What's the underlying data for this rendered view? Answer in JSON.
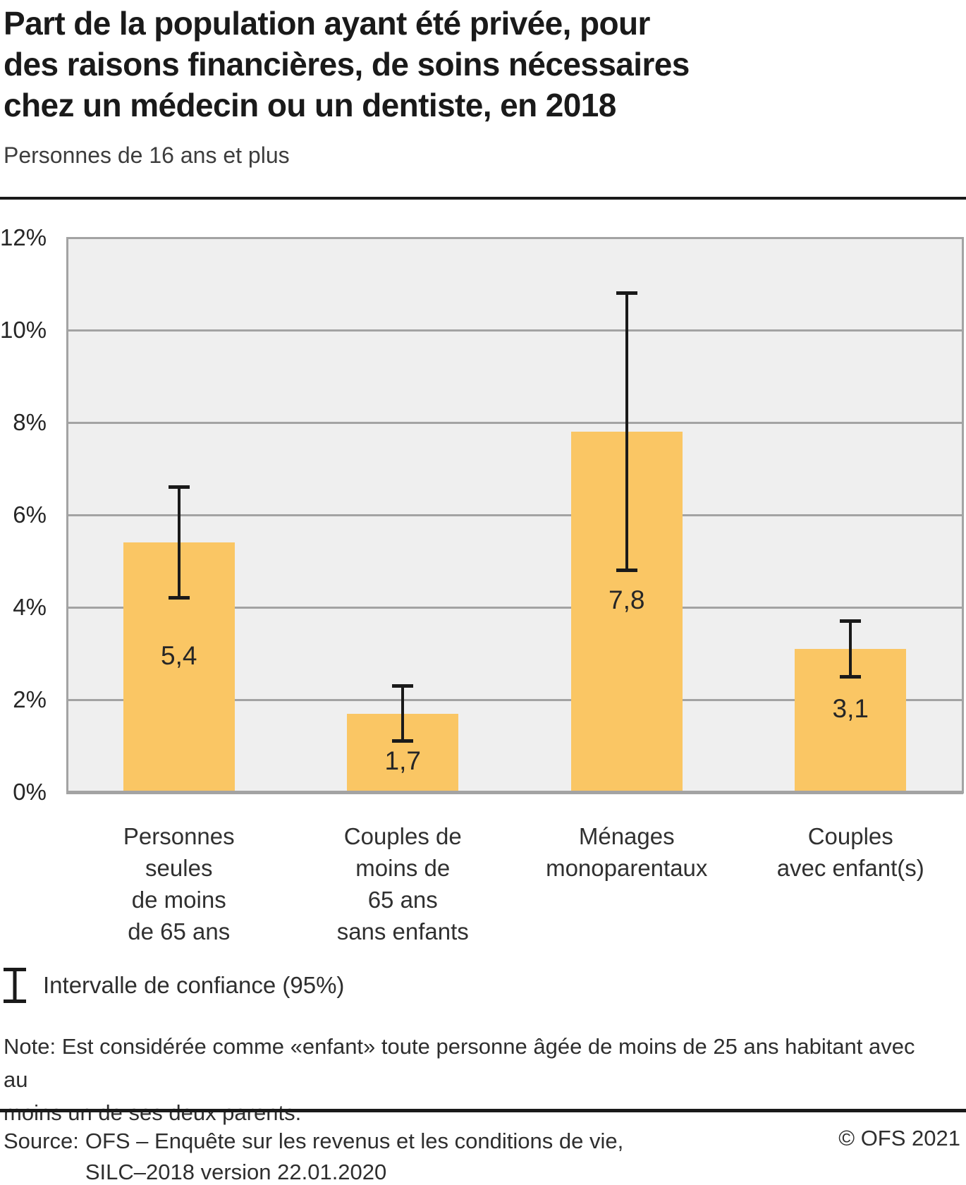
{
  "page": {
    "title_lines": [
      "Part de la population ayant été privée, pour",
      "des raisons financières, de soins nécessaires",
      "chez un médecin ou un dentiste, en 2018"
    ],
    "subtitle": "Personnes de 16 ans et plus",
    "legend_label": "Intervalle de confiance (95%)",
    "note_lines": [
      "Note: Est considérée comme «enfant» toute personne âgée de moins de 25 ans habitant avec au",
      "moins un de ses deux parents."
    ],
    "source_label": "Source:",
    "source_lines": [
      "OFS – Enquête sur les revenus et les conditions de vie,",
      "SILC–2018 version 22.01.2020"
    ],
    "copyright": "© OFS 2021"
  },
  "colors": {
    "bar": "#FAC664",
    "plot_background": "#EFEFEF",
    "grid": "#A3A3A3",
    "error_bar": "#1A1A1A",
    "rule": "#1A1A1A"
  },
  "chart_data": {
    "type": "bar",
    "title": "Part de la population ayant été privée, pour des raisons financières, de soins nécessaires chez un médecin ou un dentiste, en 2018",
    "subtitle": "Personnes de 16 ans et plus",
    "categories": [
      "Personnes seules de moins de 65 ans",
      "Couples de moins de 65 ans sans enfants",
      "Ménages monoparentaux",
      "Couples avec enfant(s)"
    ],
    "category_label_lines": [
      [
        "Personnes",
        "seules",
        "de moins",
        "de 65 ans"
      ],
      [
        "Couples de",
        "moins de",
        "65 ans",
        "sans enfants"
      ],
      [
        "Ménages",
        "monoparentaux"
      ],
      [
        "Couples",
        "avec enfant(s)"
      ]
    ],
    "values": [
      5.4,
      1.7,
      7.8,
      3.1
    ],
    "value_labels": [
      "5,4",
      "1,7",
      "7,8",
      "3,1"
    ],
    "ci_low": [
      4.2,
      1.1,
      4.8,
      2.5
    ],
    "ci_high": [
      6.6,
      2.3,
      10.8,
      3.7
    ],
    "ci_level": "95%",
    "ylim": [
      0,
      12
    ],
    "ytick_values": [
      0,
      2,
      4,
      6,
      8,
      10,
      12
    ],
    "ytick_labels": [
      "0%",
      "2%",
      "4%",
      "6%",
      "8%",
      "10%",
      "12%"
    ],
    "grid": true,
    "legend_position": "below",
    "value_label_y": [
      2.95,
      0.67,
      4.15,
      1.8
    ],
    "unit": "%"
  }
}
